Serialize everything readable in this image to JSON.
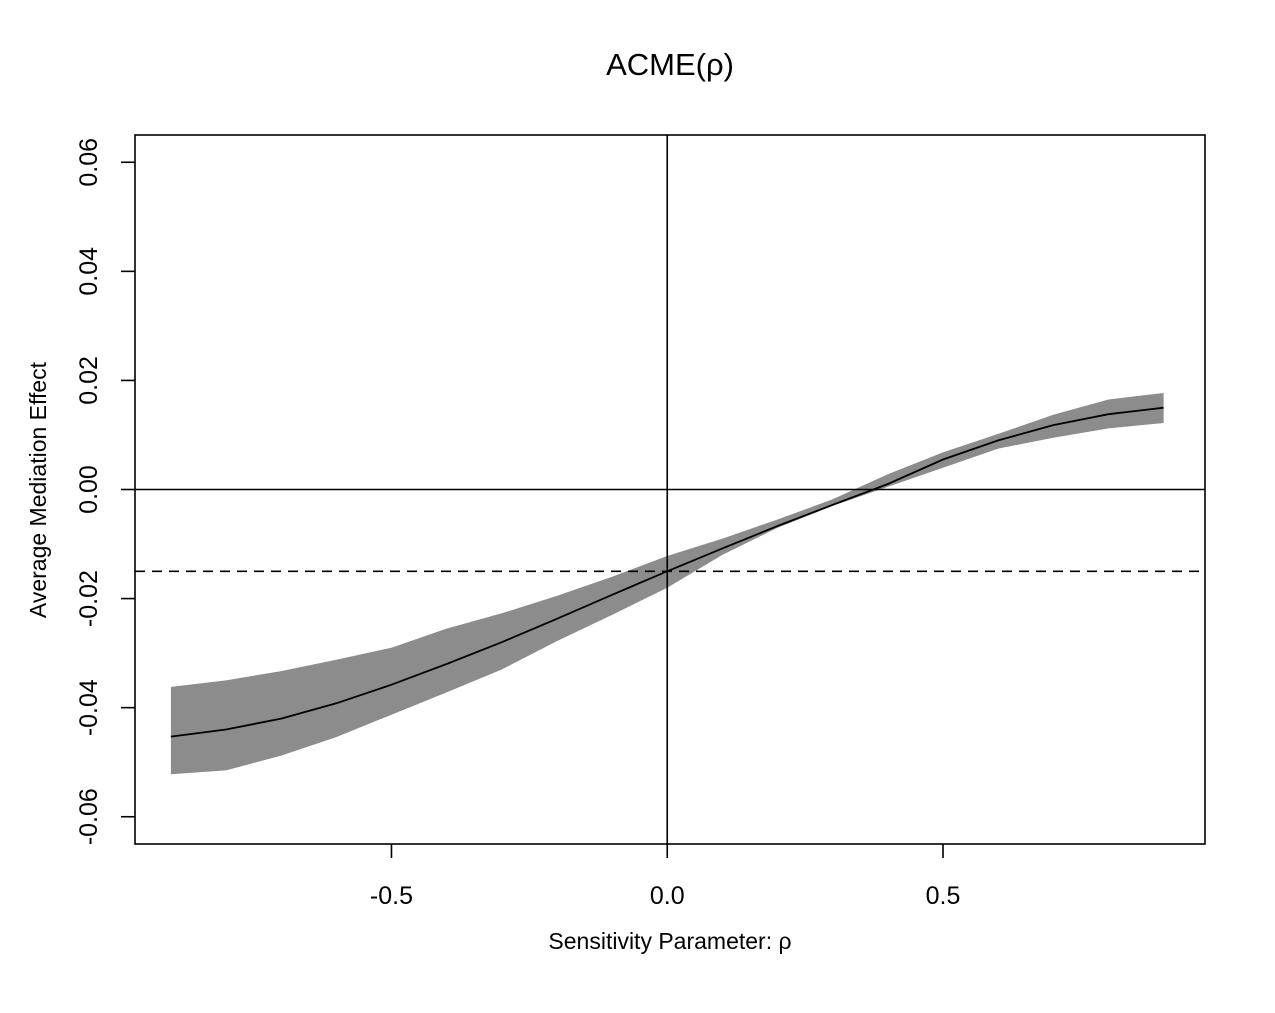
{
  "chart_data": {
    "type": "line",
    "title": "ACME(ρ)",
    "xlabel": "Sensitivity Parameter: ρ",
    "ylabel": "Average Mediation Effect",
    "xlim": [
      -0.965,
      0.975
    ],
    "ylim": [
      -0.065,
      0.065
    ],
    "x_ticks": [
      -0.5,
      0.0,
      0.5
    ],
    "x_tick_labels": [
      "-0.5",
      "0.0",
      "0.5"
    ],
    "y_ticks": [
      -0.06,
      -0.04,
      -0.02,
      0.0,
      0.02,
      0.04,
      0.06
    ],
    "y_tick_labels": [
      "-0.06",
      "-0.04",
      "-0.02",
      "0.00",
      "0.02",
      "0.04",
      "0.06"
    ],
    "grid": false,
    "reference_lines": {
      "horizontal_solid": 0.0,
      "vertical_solid": 0.0,
      "horizontal_dashed": -0.015
    },
    "series": [
      {
        "x": [
          -0.9,
          -0.8,
          -0.7,
          -0.6,
          -0.5,
          -0.4,
          -0.3,
          -0.2,
          -0.1,
          0.0,
          0.1,
          0.2,
          0.3,
          0.4,
          0.5,
          0.6,
          0.7,
          0.8,
          0.9
        ],
        "values": [
          -0.0453,
          -0.044,
          -0.042,
          -0.0392,
          -0.0358,
          -0.032,
          -0.028,
          -0.0237,
          -0.0193,
          -0.015,
          -0.0108,
          -0.0067,
          -0.0028,
          0.001,
          0.0055,
          0.009,
          0.0118,
          0.0138,
          0.015
        ],
        "lower": [
          -0.0522,
          -0.0515,
          -0.0488,
          -0.0454,
          -0.0413,
          -0.0372,
          -0.033,
          -0.0278,
          -0.023,
          -0.018,
          -0.012,
          -0.007,
          -0.003,
          0.0005,
          0.004,
          0.0075,
          0.0095,
          0.0112,
          0.0122
        ],
        "upper": [
          -0.0362,
          -0.035,
          -0.0333,
          -0.0312,
          -0.029,
          -0.0255,
          -0.0227,
          -0.0195,
          -0.016,
          -0.0122,
          -0.009,
          -0.0055,
          -0.0018,
          0.0028,
          0.0068,
          0.0102,
          0.0137,
          0.0165,
          0.0177
        ],
        "line_color": "#000000",
        "band_color": "#8c8c8c"
      }
    ]
  }
}
